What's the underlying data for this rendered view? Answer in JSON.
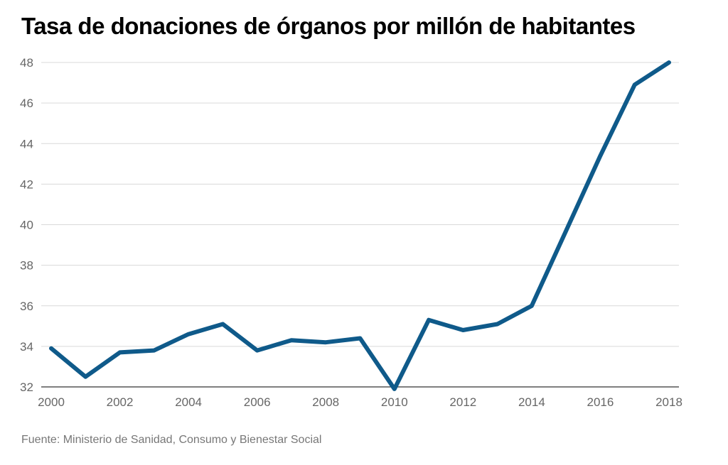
{
  "chart_data": {
    "type": "line",
    "title": "Tasa de donaciones de órganos por millón de habitantes",
    "xlabel": "",
    "ylabel": "",
    "x": [
      2000,
      2001,
      2002,
      2003,
      2004,
      2005,
      2006,
      2007,
      2008,
      2009,
      2010,
      2011,
      2012,
      2013,
      2014,
      2015,
      2016,
      2017,
      2018
    ],
    "values": [
      33.9,
      32.5,
      33.7,
      33.8,
      34.6,
      35.1,
      33.8,
      34.3,
      34.2,
      34.4,
      31.9,
      35.3,
      34.8,
      35.1,
      36.0,
      39.7,
      43.4,
      46.9,
      48.0
    ],
    "xlim": [
      2000,
      2018
    ],
    "ylim": [
      32,
      48
    ],
    "x_ticks": [
      "2000",
      "2002",
      "2004",
      "2006",
      "2008",
      "2010",
      "2012",
      "2014",
      "2016",
      "2018"
    ],
    "y_ticks": [
      "32",
      "34",
      "36",
      "38",
      "40",
      "42",
      "44",
      "46",
      "48"
    ],
    "grid": "horizontal",
    "line_color": "#0f5a8a",
    "grid_color": "#d9d9d9",
    "source": "Fuente: Ministerio de Sanidad, Consumo y Bienestar Social"
  }
}
